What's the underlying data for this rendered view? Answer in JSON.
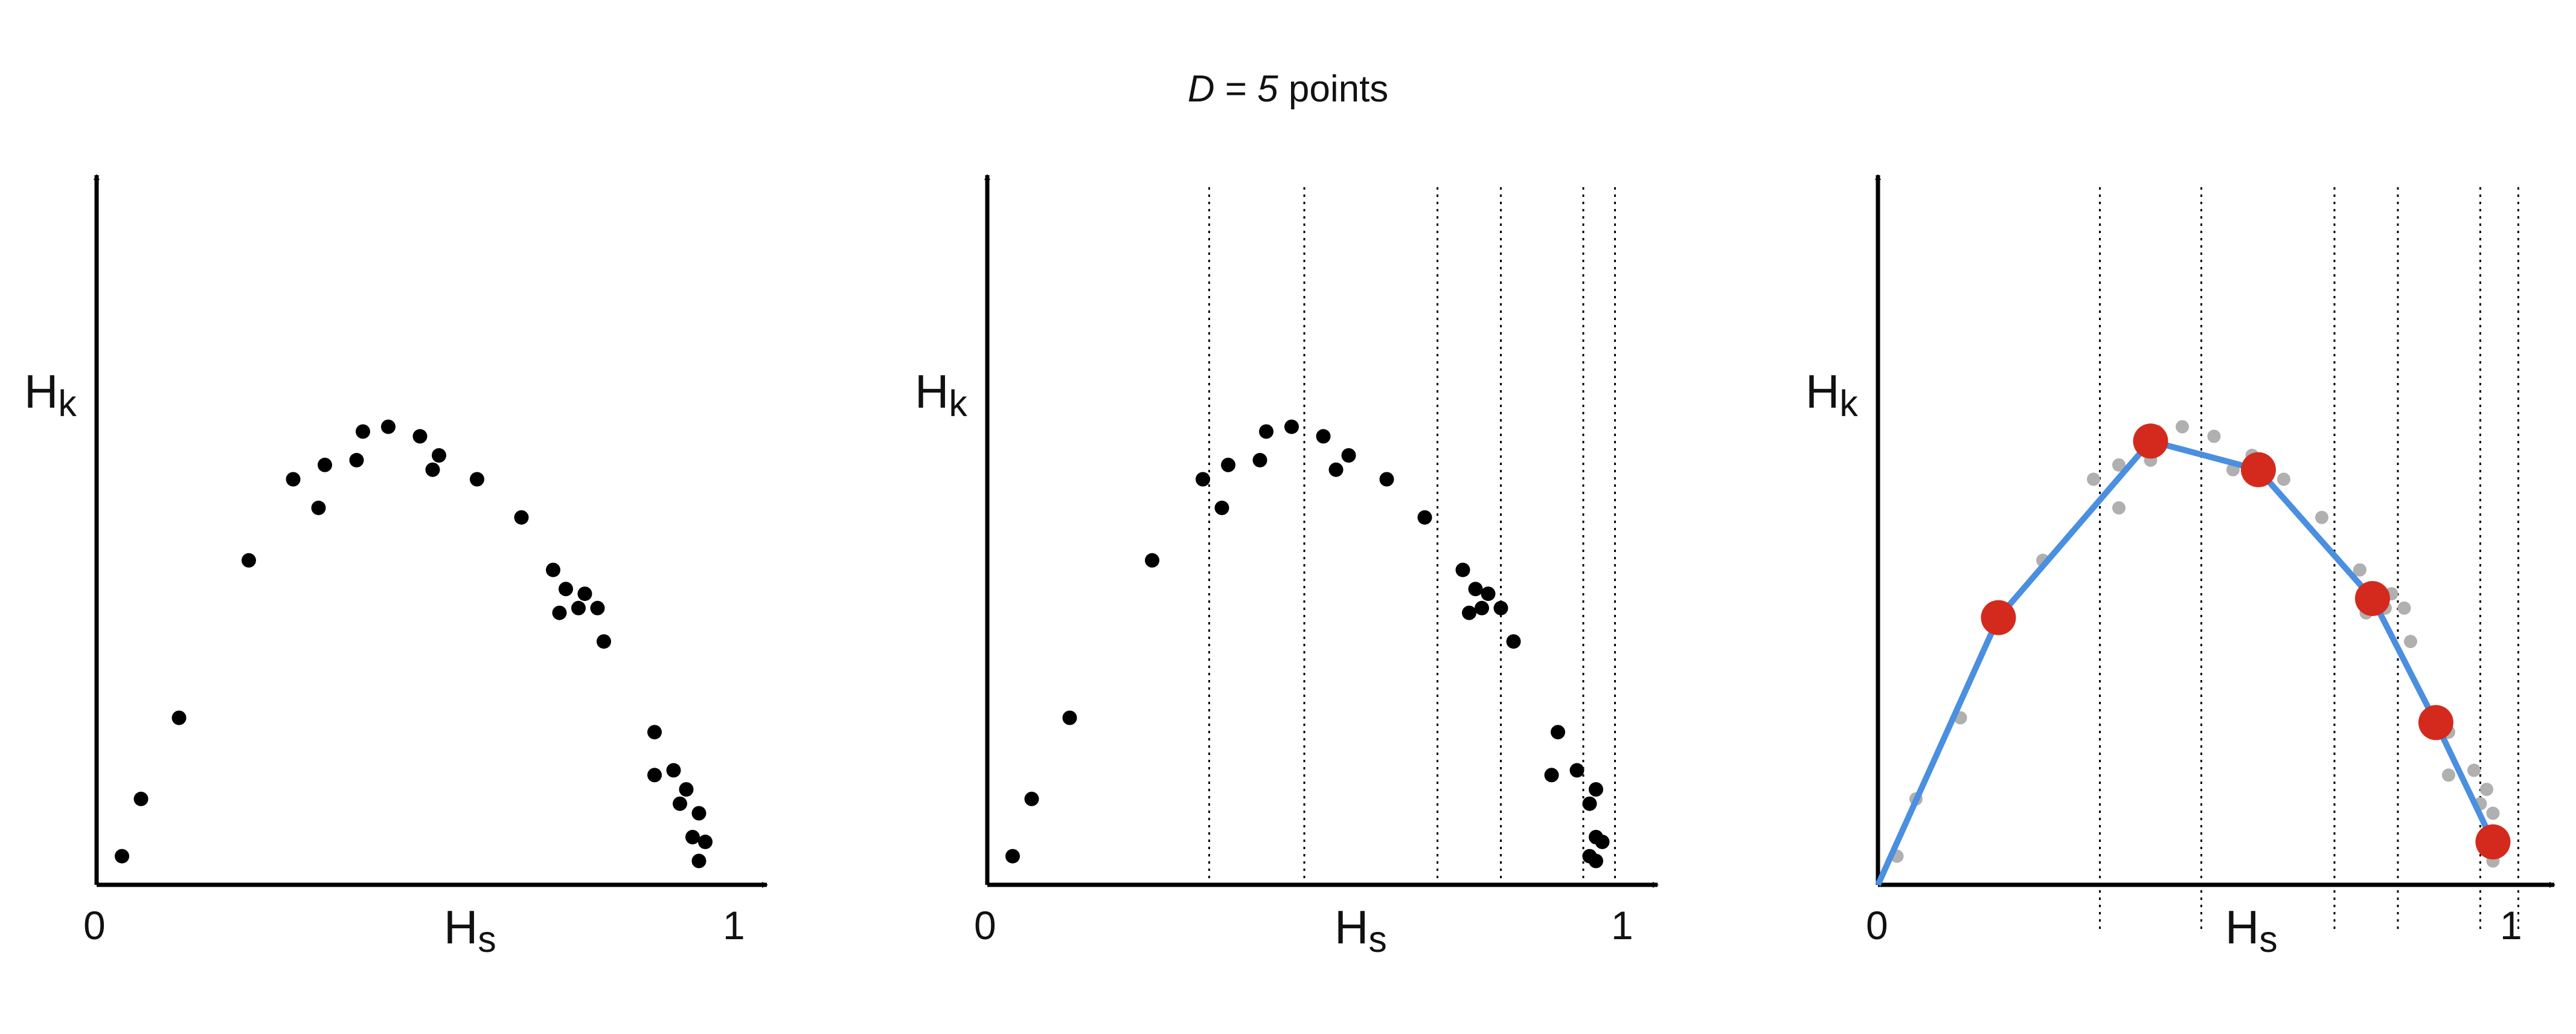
{
  "title": {
    "var": "D",
    "eq": " = ",
    "num": "5",
    "rest": " points"
  },
  "labels": {
    "y_main": "H",
    "y_sub": "k",
    "x_main": "H",
    "x_sub": "s",
    "x_min": "0",
    "x_max": "1"
  },
  "colors": {
    "points": "#000000",
    "faded_points": "#b0b0b0",
    "line": "#4a8fe0",
    "selected": "#d42a1e",
    "axis": "#000000"
  },
  "chart_data": [
    {
      "panel": 1,
      "type": "scatter",
      "xlabel": "Hs",
      "ylabel": "Hk",
      "xlim": [
        0,
        1
      ],
      "ylim": [
        0,
        1
      ],
      "points": [
        [
          0.04,
          0.06
        ],
        [
          0.07,
          0.18
        ],
        [
          0.13,
          0.35
        ],
        [
          0.24,
          0.68
        ],
        [
          0.31,
          0.85
        ],
        [
          0.35,
          0.79
        ],
        [
          0.36,
          0.88
        ],
        [
          0.41,
          0.89
        ],
        [
          0.42,
          0.95
        ],
        [
          0.46,
          0.96
        ],
        [
          0.51,
          0.94
        ],
        [
          0.53,
          0.87
        ],
        [
          0.54,
          0.9
        ],
        [
          0.6,
          0.85
        ],
        [
          0.67,
          0.77
        ],
        [
          0.72,
          0.66
        ],
        [
          0.73,
          0.57
        ],
        [
          0.74,
          0.62
        ],
        [
          0.76,
          0.58
        ],
        [
          0.77,
          0.61
        ],
        [
          0.79,
          0.58
        ],
        [
          0.8,
          0.51
        ],
        [
          0.88,
          0.32
        ],
        [
          0.88,
          0.23
        ],
        [
          0.91,
          0.24
        ],
        [
          0.92,
          0.17
        ],
        [
          0.93,
          0.2
        ],
        [
          0.94,
          0.1
        ],
        [
          0.95,
          0.15
        ],
        [
          0.95,
          0.05
        ],
        [
          0.96,
          0.09
        ]
      ]
    },
    {
      "panel": 2,
      "type": "scatter",
      "xlabel": "Hs",
      "ylabel": "Hk",
      "xlim": [
        0,
        1
      ],
      "ylim": [
        0,
        1
      ],
      "bin_edges": [
        0.35,
        0.5,
        0.71,
        0.81,
        0.94,
        0.99
      ],
      "points": [
        [
          0.04,
          0.06
        ],
        [
          0.07,
          0.18
        ],
        [
          0.13,
          0.35
        ],
        [
          0.26,
          0.68
        ],
        [
          0.34,
          0.85
        ],
        [
          0.37,
          0.79
        ],
        [
          0.38,
          0.88
        ],
        [
          0.43,
          0.89
        ],
        [
          0.44,
          0.95
        ],
        [
          0.48,
          0.96
        ],
        [
          0.53,
          0.94
        ],
        [
          0.55,
          0.87
        ],
        [
          0.57,
          0.9
        ],
        [
          0.63,
          0.85
        ],
        [
          0.69,
          0.77
        ],
        [
          0.75,
          0.66
        ],
        [
          0.76,
          0.57
        ],
        [
          0.77,
          0.62
        ],
        [
          0.78,
          0.58
        ],
        [
          0.79,
          0.61
        ],
        [
          0.81,
          0.58
        ],
        [
          0.83,
          0.51
        ],
        [
          0.9,
          0.32
        ],
        [
          0.89,
          0.23
        ],
        [
          0.93,
          0.24
        ],
        [
          0.95,
          0.17
        ],
        [
          0.96,
          0.2
        ],
        [
          0.96,
          0.1
        ],
        [
          0.95,
          0.06
        ],
        [
          0.97,
          0.09
        ],
        [
          0.96,
          0.05
        ]
      ]
    },
    {
      "panel": 3,
      "type": "line",
      "xlabel": "Hs",
      "ylabel": "Hk",
      "xlim": [
        0,
        1
      ],
      "ylim": [
        0,
        1
      ],
      "bin_edges": [
        0.35,
        0.51,
        0.72,
        0.82,
        0.95,
        1.01
      ],
      "faded_points": [
        [
          0.03,
          0.06
        ],
        [
          0.06,
          0.18
        ],
        [
          0.13,
          0.35
        ],
        [
          0.26,
          0.68
        ],
        [
          0.34,
          0.85
        ],
        [
          0.38,
          0.79
        ],
        [
          0.38,
          0.88
        ],
        [
          0.43,
          0.89
        ],
        [
          0.44,
          0.95
        ],
        [
          0.48,
          0.96
        ],
        [
          0.53,
          0.94
        ],
        [
          0.56,
          0.87
        ],
        [
          0.59,
          0.9
        ],
        [
          0.64,
          0.85
        ],
        [
          0.7,
          0.77
        ],
        [
          0.76,
          0.66
        ],
        [
          0.77,
          0.57
        ],
        [
          0.78,
          0.62
        ],
        [
          0.8,
          0.58
        ],
        [
          0.81,
          0.61
        ],
        [
          0.83,
          0.58
        ],
        [
          0.84,
          0.51
        ],
        [
          0.9,
          0.32
        ],
        [
          0.9,
          0.23
        ],
        [
          0.94,
          0.24
        ],
        [
          0.95,
          0.17
        ],
        [
          0.96,
          0.2
        ],
        [
          0.96,
          0.1
        ],
        [
          0.97,
          0.15
        ],
        [
          0.97,
          0.05
        ],
        [
          0.98,
          0.09
        ]
      ],
      "series": [
        {
          "x": [
            0.0,
            0.19,
            0.43,
            0.6,
            0.78,
            0.88,
            0.97
          ],
          "y": [
            0.0,
            0.56,
            0.93,
            0.87,
            0.6,
            0.34,
            0.09
          ]
        }
      ],
      "selected_points": [
        [
          0.19,
          0.56
        ],
        [
          0.43,
          0.93
        ],
        [
          0.6,
          0.87
        ],
        [
          0.78,
          0.6
        ],
        [
          0.88,
          0.34
        ],
        [
          0.97,
          0.09
        ]
      ]
    }
  ]
}
